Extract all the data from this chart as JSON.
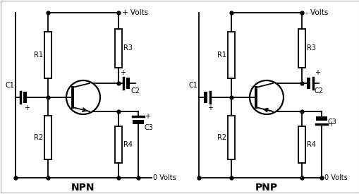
{
  "background_color": "#ffffff",
  "line_color": "#000000",
  "title_npn": "NPN",
  "title_pnp": "PNP",
  "label_plus_volts": "+ Volts",
  "label_minus_volts": "- Volts",
  "label_0volts": "0 Volts",
  "label_R1": "R1",
  "label_R2": "R2",
  "label_R3": "R3",
  "label_R4": "R4",
  "label_C1": "C1",
  "label_C2": "C2",
  "label_C3": "C3",
  "fig_width": 5.1,
  "fig_height": 2.75,
  "dpi": 100
}
